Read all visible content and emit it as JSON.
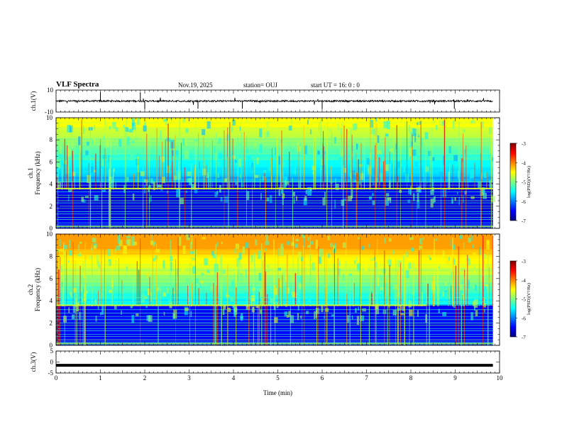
{
  "header": {
    "title": "VLF Spectra",
    "date": "Nov.19, 2025",
    "station": "station= OUJ",
    "start_ut": "start  UT =   16: 0  : 0"
  },
  "chart_data": [
    {
      "type": "line",
      "name": "ch1-waveform",
      "ylabel": "ch.1(V)",
      "ylim": [
        -10,
        10
      ],
      "yticks": [
        "10",
        "-10"
      ],
      "baseline": 0,
      "description_series": "amplitude trace near 0 V with spikes"
    },
    {
      "type": "heatmap",
      "name": "ch1-spectrogram",
      "ylabel": "ch.1\nFrequency (kHz)",
      "ylabel_line1": "ch.1",
      "ylabel_line2": "Frequency (kHz)",
      "ylim": [
        0,
        10
      ],
      "yticks": [
        "0",
        "2",
        "4",
        "6",
        "8",
        "10"
      ],
      "colorbar": {
        "label": "log(PSD)(V²/Hz)",
        "ticks": [
          "-3",
          "-4",
          "-5",
          "-6",
          "-7"
        ],
        "range": [
          -7,
          -3
        ]
      },
      "horizontal_lines_khz": [
        0.3,
        0.5,
        0.8,
        1.0,
        1.3,
        1.5,
        1.8,
        2.0,
        2.3,
        2.5,
        2.8,
        3.0,
        3.3,
        3.6,
        3.9,
        4.2
      ],
      "bright_line_khz": 3.6
    },
    {
      "type": "heatmap",
      "name": "ch2-spectrogram",
      "ylabel": "ch.2\nFrequency (kHz)",
      "ylabel_line1": "ch.2",
      "ylabel_line2": "Frequency (kHz)",
      "ylim": [
        0,
        10
      ],
      "yticks": [
        "0",
        "2",
        "4",
        "6",
        "8",
        "10"
      ],
      "colorbar": {
        "label": "log(PSD)(V²/Hz)",
        "ticks": [
          "-3",
          "-4",
          "-5",
          "-6",
          "-7"
        ],
        "range": [
          -7,
          -3
        ]
      },
      "horizontal_lines_khz": [
        0.3,
        0.5,
        0.8,
        1.0,
        1.3,
        1.5,
        1.8,
        2.0,
        2.3,
        2.6,
        2.9,
        3.2,
        3.6,
        3.9,
        4.3
      ],
      "bright_line_khz": 3.6,
      "bright_line_end_min": 8.35
    },
    {
      "type": "line",
      "name": "ch3-waveform",
      "ylabel": "ch.3(V)",
      "ylim": [
        -5,
        5
      ],
      "yticks": [
        "5",
        "0",
        "-5"
      ],
      "level": -1.5
    }
  ],
  "xaxis": {
    "label": "Time  (min)",
    "range": [
      0,
      10
    ],
    "ticks": [
      "0",
      "1",
      "2",
      "3",
      "4",
      "5",
      "6",
      "7",
      "8",
      "9",
      "10"
    ],
    "data_end": 9.85
  },
  "colors": {
    "background": "#ffffff",
    "trace": "#000000",
    "cmap": [
      "#00007f",
      "#0000ff",
      "#007fff",
      "#00ffff",
      "#7fff7f",
      "#ffff00",
      "#ff7f00",
      "#ff0000",
      "#7f0000"
    ]
  }
}
